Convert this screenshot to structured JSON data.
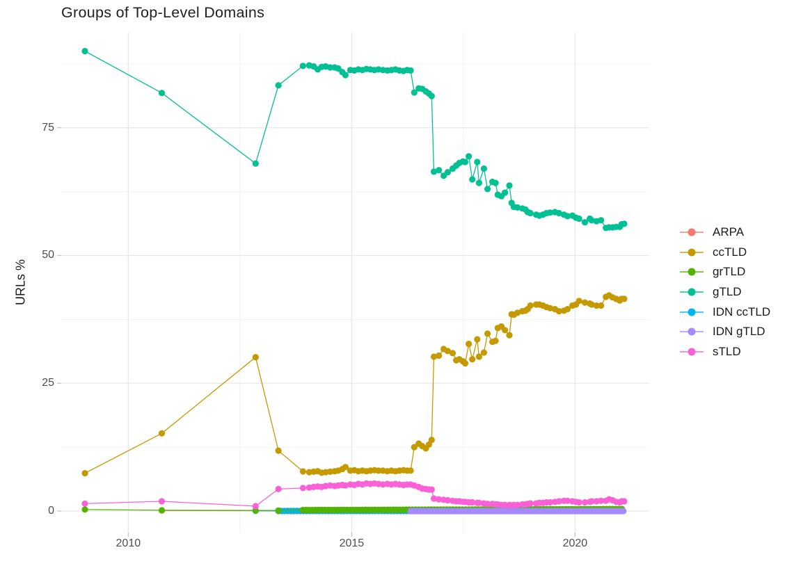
{
  "title": "Groups of Top-Level Domains",
  "axes": {
    "y_label": "URLs %",
    "x_tick_labels": [
      "2010",
      "2015",
      "2020"
    ],
    "y_tick_labels": [
      "0",
      "25",
      "50",
      "75"
    ]
  },
  "legend": {
    "items": [
      {
        "label": "ARPA",
        "color": "#F8766D"
      },
      {
        "label": "ccTLD",
        "color": "#C49A00"
      },
      {
        "label": "grTLD",
        "color": "#53B400"
      },
      {
        "label": "gTLD",
        "color": "#00C094"
      },
      {
        "label": "IDN ccTLD",
        "color": "#00B6EB"
      },
      {
        "label": "IDN gTLD",
        "color": "#A58AFF"
      },
      {
        "label": "sTLD",
        "color": "#FB61D7"
      }
    ]
  },
  "chart_data": {
    "type": "line",
    "title": "Groups of Top-Level Domains",
    "xlabel": "",
    "ylabel": "URLs %",
    "xlim": [
      2008.5,
      2021.66
    ],
    "ylim": [
      -4.22,
      93.6
    ],
    "x_major_ticks": [
      2010,
      2015,
      2020
    ],
    "y_major_ticks": [
      0,
      25,
      50,
      75
    ],
    "x_minor_gridlines": [
      2012.5,
      2017.5
    ],
    "y_minor_gridlines": [
      12.5,
      37.5,
      62.5,
      87.5
    ],
    "grid": "major-and-minor",
    "legend_position": "right",
    "marker": "point-on-line",
    "series": [
      {
        "name": "ARPA",
        "color": "#F8766D",
        "points": [
          [
            2010.75,
            0.1
          ],
          [
            2012.85,
            0.07
          ]
        ],
        "flat_band": {
          "from": 2013.36,
          "to": 2021.1,
          "value_start": 0.0,
          "value_end": 0.0,
          "step": 0.07
        }
      },
      {
        "name": "ccTLD",
        "color": "#C49A00",
        "points": [
          [
            2009.03,
            7.4
          ],
          [
            2010.75,
            15.2
          ],
          [
            2012.85,
            30.1
          ],
          [
            2013.36,
            11.8
          ],
          [
            2013.91,
            7.75
          ],
          [
            2014.05,
            7.6
          ],
          [
            2014.15,
            7.7
          ],
          [
            2014.24,
            7.8
          ],
          [
            2014.33,
            7.5
          ],
          [
            2014.42,
            7.6
          ],
          [
            2014.52,
            7.7
          ],
          [
            2014.62,
            7.8
          ],
          [
            2014.7,
            7.9
          ],
          [
            2014.79,
            8.2
          ],
          [
            2014.86,
            8.6
          ],
          [
            2014.97,
            7.9
          ],
          [
            2015.06,
            8.0
          ],
          [
            2015.15,
            7.8
          ],
          [
            2015.24,
            7.9
          ],
          [
            2015.33,
            7.8
          ],
          [
            2015.42,
            7.9
          ],
          [
            2015.51,
            8.0
          ],
          [
            2015.6,
            7.9
          ],
          [
            2015.7,
            7.9
          ],
          [
            2015.8,
            7.8
          ],
          [
            2015.89,
            7.9
          ],
          [
            2015.98,
            7.8
          ],
          [
            2016.07,
            7.9
          ],
          [
            2016.16,
            8.0
          ],
          [
            2016.24,
            7.9
          ],
          [
            2016.32,
            7.9
          ],
          [
            2016.4,
            12.5
          ],
          [
            2016.5,
            13.2
          ],
          [
            2016.58,
            12.7
          ],
          [
            2016.66,
            12.25
          ],
          [
            2016.73,
            13.0
          ],
          [
            2016.79,
            13.9
          ],
          [
            2016.84,
            30.2
          ],
          [
            2016.95,
            30.4
          ],
          [
            2017.06,
            31.7
          ],
          [
            2017.15,
            31.3
          ],
          [
            2017.26,
            30.9
          ],
          [
            2017.34,
            29.5
          ],
          [
            2017.41,
            29.7
          ],
          [
            2017.49,
            29.3
          ],
          [
            2017.54,
            28.9
          ],
          [
            2017.62,
            32.7
          ],
          [
            2017.7,
            29.7
          ],
          [
            2017.81,
            33.6
          ],
          [
            2017.85,
            30.2
          ],
          [
            2017.96,
            31.0
          ],
          [
            2018.04,
            34.7
          ],
          [
            2018.15,
            33.1
          ],
          [
            2018.22,
            33.3
          ],
          [
            2018.27,
            35.8
          ],
          [
            2018.35,
            36.1
          ],
          [
            2018.43,
            35.4
          ],
          [
            2018.53,
            34.4
          ],
          [
            2018.58,
            38.5
          ],
          [
            2018.63,
            38.4
          ],
          [
            2018.71,
            38.8
          ],
          [
            2018.82,
            39.1
          ],
          [
            2018.89,
            39.2
          ],
          [
            2018.94,
            39.5
          ],
          [
            2019.0,
            40.2
          ],
          [
            2019.13,
            40.4
          ],
          [
            2019.2,
            40.4
          ],
          [
            2019.28,
            40.2
          ],
          [
            2019.36,
            39.9
          ],
          [
            2019.44,
            39.7
          ],
          [
            2019.55,
            39.5
          ],
          [
            2019.64,
            39.1
          ],
          [
            2019.75,
            39.2
          ],
          [
            2019.83,
            39.5
          ],
          [
            2019.94,
            40.2
          ],
          [
            2020.02,
            40.4
          ],
          [
            2020.09,
            41.1
          ],
          [
            2020.22,
            40.8
          ],
          [
            2020.33,
            40.6
          ],
          [
            2020.37,
            40.4
          ],
          [
            2020.48,
            40.2
          ],
          [
            2020.58,
            40.2
          ],
          [
            2020.69,
            41.9
          ],
          [
            2020.76,
            42.2
          ],
          [
            2020.84,
            41.8
          ],
          [
            2020.92,
            41.5
          ],
          [
            2021.0,
            41.2
          ],
          [
            2021.04,
            41.5
          ],
          [
            2021.1,
            41.5
          ]
        ]
      },
      {
        "name": "grTLD",
        "color": "#53B400",
        "points": [
          [
            2009.03,
            0.3
          ],
          [
            2010.75,
            0.15
          ],
          [
            2012.85,
            0.1
          ],
          [
            2013.36,
            0.1
          ]
        ],
        "flat_band": {
          "from": 2013.91,
          "to": 2021.1,
          "value_start": 0.2,
          "value_end": 0.4,
          "step": 0.07
        }
      },
      {
        "name": "gTLD",
        "color": "#00C094",
        "points": [
          [
            2009.03,
            90.0
          ],
          [
            2010.75,
            81.8
          ],
          [
            2012.85,
            68.0
          ],
          [
            2013.36,
            83.3
          ],
          [
            2013.91,
            87.1
          ],
          [
            2014.05,
            87.2
          ],
          [
            2014.15,
            87.0
          ],
          [
            2014.24,
            86.4
          ],
          [
            2014.33,
            86.9
          ],
          [
            2014.42,
            87.0
          ],
          [
            2014.52,
            86.8
          ],
          [
            2014.62,
            86.8
          ],
          [
            2014.7,
            86.6
          ],
          [
            2014.79,
            85.9
          ],
          [
            2014.86,
            85.3
          ],
          [
            2014.97,
            86.3
          ],
          [
            2015.06,
            86.2
          ],
          [
            2015.15,
            86.4
          ],
          [
            2015.24,
            86.3
          ],
          [
            2015.33,
            86.5
          ],
          [
            2015.42,
            86.4
          ],
          [
            2015.51,
            86.3
          ],
          [
            2015.6,
            86.4
          ],
          [
            2015.7,
            86.3
          ],
          [
            2015.8,
            86.2
          ],
          [
            2015.89,
            86.3
          ],
          [
            2015.98,
            86.4
          ],
          [
            2016.07,
            86.2
          ],
          [
            2016.16,
            86.1
          ],
          [
            2016.24,
            86.3
          ],
          [
            2016.32,
            86.2
          ],
          [
            2016.4,
            81.9
          ],
          [
            2016.5,
            82.7
          ],
          [
            2016.58,
            82.6
          ],
          [
            2016.66,
            82.1
          ],
          [
            2016.73,
            81.7
          ],
          [
            2016.79,
            81.2
          ],
          [
            2016.84,
            66.4
          ],
          [
            2016.95,
            66.7
          ],
          [
            2017.06,
            65.6
          ],
          [
            2017.15,
            66.3
          ],
          [
            2017.26,
            67.0
          ],
          [
            2017.34,
            67.6
          ],
          [
            2017.41,
            68.1
          ],
          [
            2017.49,
            68.4
          ],
          [
            2017.54,
            68.3
          ],
          [
            2017.62,
            69.4
          ],
          [
            2017.7,
            64.9
          ],
          [
            2017.81,
            68.3
          ],
          [
            2017.85,
            64.2
          ],
          [
            2017.96,
            67.0
          ],
          [
            2018.04,
            63.0
          ],
          [
            2018.15,
            64.4
          ],
          [
            2018.22,
            64.2
          ],
          [
            2018.27,
            61.9
          ],
          [
            2018.35,
            61.6
          ],
          [
            2018.43,
            62.3
          ],
          [
            2018.53,
            63.7
          ],
          [
            2018.58,
            60.3
          ],
          [
            2018.63,
            59.5
          ],
          [
            2018.71,
            59.4
          ],
          [
            2018.82,
            59.2
          ],
          [
            2018.89,
            59.0
          ],
          [
            2018.94,
            58.5
          ],
          [
            2019.0,
            58.3
          ],
          [
            2019.13,
            58.0
          ],
          [
            2019.2,
            57.8
          ],
          [
            2019.28,
            58.0
          ],
          [
            2019.36,
            58.3
          ],
          [
            2019.44,
            58.4
          ],
          [
            2019.55,
            58.5
          ],
          [
            2019.64,
            58.3
          ],
          [
            2019.75,
            58.0
          ],
          [
            2019.83,
            57.7
          ],
          [
            2019.94,
            57.8
          ],
          [
            2020.02,
            57.4
          ],
          [
            2020.09,
            57.2
          ],
          [
            2020.22,
            56.5
          ],
          [
            2020.33,
            57.2
          ],
          [
            2020.37,
            56.9
          ],
          [
            2020.48,
            56.7
          ],
          [
            2020.58,
            56.9
          ],
          [
            2020.69,
            55.4
          ],
          [
            2020.76,
            55.5
          ],
          [
            2020.84,
            55.5
          ],
          [
            2020.92,
            55.6
          ],
          [
            2021.0,
            55.6
          ],
          [
            2021.04,
            56.1
          ],
          [
            2021.1,
            56.2
          ]
        ]
      },
      {
        "name": "IDN ccTLD",
        "color": "#00B6EB",
        "points": [
          [
            2012.85,
            0.05
          ]
        ],
        "flat_band": {
          "from": 2013.36,
          "to": 2021.1,
          "value_start": 0.03,
          "value_end": 0.03,
          "step": 0.07
        }
      },
      {
        "name": "IDN gTLD",
        "color": "#A58AFF",
        "points": [],
        "flat_band": {
          "from": 2016.32,
          "to": 2021.1,
          "value_start": 0.0,
          "value_end": 0.0,
          "step": 0.07
        }
      },
      {
        "name": "sTLD",
        "color": "#FB61D7",
        "points": [
          [
            2009.03,
            1.45
          ],
          [
            2010.75,
            1.9
          ],
          [
            2012.85,
            0.95
          ],
          [
            2013.36,
            4.3
          ],
          [
            2013.91,
            4.5
          ],
          [
            2014.05,
            4.6
          ],
          [
            2014.15,
            4.7
          ],
          [
            2014.24,
            4.8
          ],
          [
            2014.33,
            4.7
          ],
          [
            2014.42,
            4.9
          ],
          [
            2014.52,
            5.0
          ],
          [
            2014.62,
            4.9
          ],
          [
            2014.7,
            5.0
          ],
          [
            2014.79,
            5.1
          ],
          [
            2014.86,
            5.0
          ],
          [
            2014.97,
            5.2
          ],
          [
            2015.06,
            5.1
          ],
          [
            2015.15,
            5.3
          ],
          [
            2015.24,
            5.2
          ],
          [
            2015.33,
            5.4
          ],
          [
            2015.42,
            5.3
          ],
          [
            2015.51,
            5.4
          ],
          [
            2015.6,
            5.3
          ],
          [
            2015.7,
            5.2
          ],
          [
            2015.8,
            5.3
          ],
          [
            2015.89,
            5.2
          ],
          [
            2015.98,
            5.3
          ],
          [
            2016.07,
            5.2
          ],
          [
            2016.16,
            5.1
          ],
          [
            2016.24,
            5.2
          ],
          [
            2016.32,
            5.2
          ],
          [
            2016.4,
            5.0
          ],
          [
            2016.5,
            4.7
          ],
          [
            2016.58,
            4.4
          ],
          [
            2016.66,
            4.3
          ],
          [
            2016.73,
            4.2
          ],
          [
            2016.79,
            4.2
          ],
          [
            2016.84,
            2.45
          ],
          [
            2016.95,
            2.3
          ],
          [
            2017.06,
            2.2
          ],
          [
            2017.15,
            2.1
          ],
          [
            2017.26,
            2.0
          ],
          [
            2017.34,
            1.9
          ],
          [
            2017.41,
            1.9
          ],
          [
            2017.49,
            1.8
          ],
          [
            2017.54,
            1.8
          ],
          [
            2017.62,
            1.7
          ],
          [
            2017.7,
            1.7
          ],
          [
            2017.81,
            1.6
          ],
          [
            2017.85,
            1.6
          ],
          [
            2017.96,
            1.5
          ],
          [
            2018.04,
            1.4
          ],
          [
            2018.15,
            1.4
          ],
          [
            2018.22,
            1.3
          ],
          [
            2018.27,
            1.3
          ],
          [
            2018.35,
            1.2
          ],
          [
            2018.43,
            1.2
          ],
          [
            2018.53,
            1.2
          ],
          [
            2018.58,
            1.1
          ],
          [
            2018.63,
            1.2
          ],
          [
            2018.71,
            1.2
          ],
          [
            2018.82,
            1.3
          ],
          [
            2018.89,
            1.3
          ],
          [
            2018.94,
            1.4
          ],
          [
            2019.0,
            1.5
          ],
          [
            2019.13,
            1.5
          ],
          [
            2019.2,
            1.6
          ],
          [
            2019.28,
            1.6
          ],
          [
            2019.36,
            1.7
          ],
          [
            2019.44,
            1.7
          ],
          [
            2019.55,
            1.8
          ],
          [
            2019.64,
            1.9
          ],
          [
            2019.75,
            2.0
          ],
          [
            2019.83,
            2.0
          ],
          [
            2019.94,
            1.9
          ],
          [
            2020.02,
            1.8
          ],
          [
            2020.09,
            1.7
          ],
          [
            2020.22,
            1.7
          ],
          [
            2020.33,
            1.8
          ],
          [
            2020.37,
            1.9
          ],
          [
            2020.48,
            1.9
          ],
          [
            2020.58,
            2.0
          ],
          [
            2020.69,
            2.0
          ],
          [
            2020.76,
            2.3
          ],
          [
            2020.84,
            2.1
          ],
          [
            2020.92,
            1.8
          ],
          [
            2021.0,
            1.7
          ],
          [
            2021.04,
            1.9
          ],
          [
            2021.1,
            1.9
          ]
        ]
      }
    ]
  },
  "style": {
    "major_grid_color": "#E8E8E8",
    "minor_grid_color": "#F2F2F2",
    "tick_color": "#C4C4C4",
    "background": "#FFFFFF"
  }
}
